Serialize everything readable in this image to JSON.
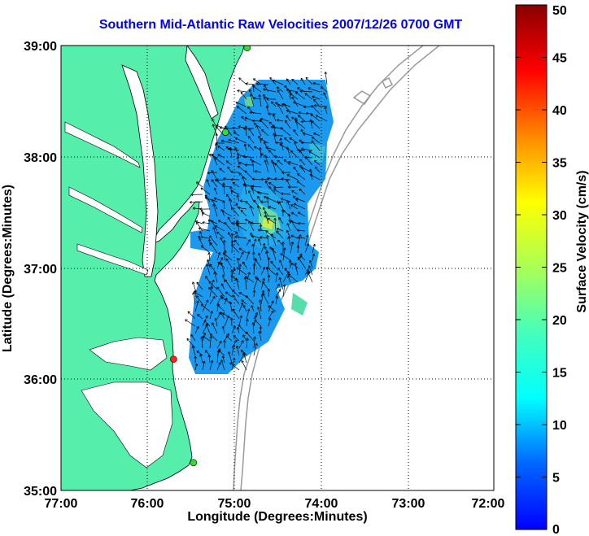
{
  "title": "Southern Mid-Atlantic Raw Velocities 2007/12/26 0700 GMT",
  "map": {
    "xlabel": "Longitude (Degrees:Minutes)",
    "ylabel": "Latitude (Degrees:Minutes)",
    "x_ticks": [
      "77:00",
      "76:00",
      "75:00",
      "74:00",
      "73:00",
      "72:00"
    ],
    "y_ticks": [
      "39:00",
      "38:00",
      "37:00",
      "36:00",
      "35:00"
    ],
    "lon_range": [
      -77,
      -72
    ],
    "lat_range": [
      35,
      39
    ],
    "grid": true,
    "colors": {
      "land": "#55eeaa",
      "velocity_field": "#1a99ee",
      "arrows": "#000000",
      "bathymetry": "#999999",
      "grid": "#000000"
    },
    "stations": [
      {
        "lon": -74.85,
        "lat": 38.98,
        "color": "#33dd33"
      },
      {
        "lon": -75.1,
        "lat": 38.22,
        "color": "#33dd33"
      },
      {
        "lon": -75.7,
        "lat": 36.18,
        "color": "#ff2222"
      },
      {
        "lon": -75.47,
        "lat": 35.25,
        "color": "#33dd33"
      }
    ]
  },
  "colorbar": {
    "label": "Surface Velocity (cm/s)",
    "min": 0,
    "max": 50,
    "ticks": [
      "0",
      "5",
      "10",
      "15",
      "20",
      "25",
      "30",
      "35",
      "40",
      "45",
      "50"
    ],
    "colormap": "jet"
  }
}
